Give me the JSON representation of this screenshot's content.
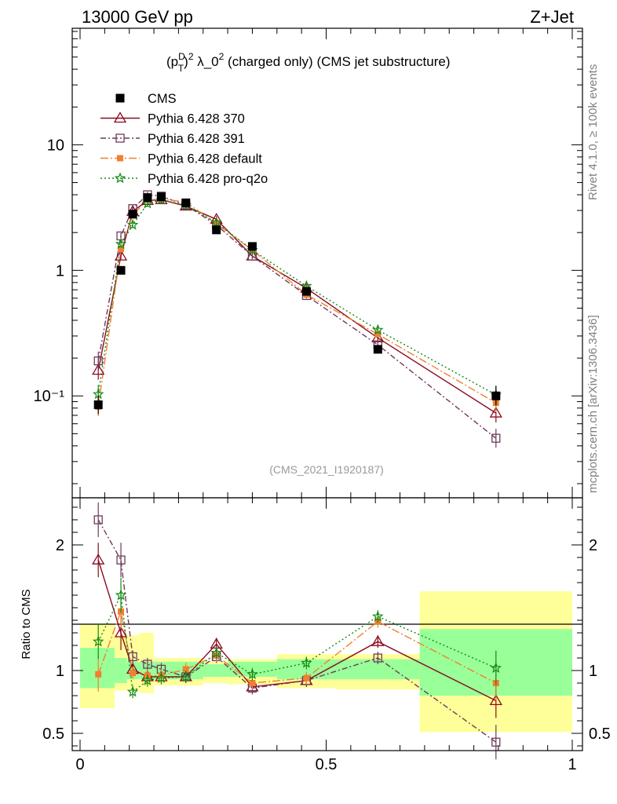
{
  "header": {
    "left": "13000 GeV pp",
    "right": "Z+Jet",
    "side_top": "Rivet 4.1.0, ≥ 100k events",
    "side_bottom": "mcplots.cern.ch [arXiv:1306.3436]"
  },
  "colors": {
    "cms": "#000000",
    "p370": "#8b0a1f",
    "p391": "#6e3b5a",
    "pdefault": "#f08030",
    "pq2o": "#148a14",
    "band_yellow": "#ffff99",
    "band_green": "#99ff99"
  },
  "chart_data": {
    "type": "line",
    "title_main": "(p",
    "title_sup1": "D",
    "title_sub": "T",
    "title_after": ")",
    "title_sup2": "2",
    "title_lambda": " λ_0",
    "title_sup3": "2",
    "title_rest": " (charged only) (CMS jet substructure)",
    "watermark": "(CMS_2021_I1920187)",
    "ylabel_ratio": "Ratio to CMS",
    "xlim": [
      0,
      1
    ],
    "ylim_main": [
      0.02,
      80
    ],
    "ylim_ratio": [
      0.4,
      2.3
    ],
    "x_tick_labels": [
      "0",
      "0.5",
      "1"
    ],
    "x_ticks": [
      0,
      0.5,
      1
    ],
    "y_tick_labels_main": [
      "10⁻¹",
      "1",
      "10"
    ],
    "y_ticks_main": [
      0.1,
      1,
      10
    ],
    "y_tick_labels_ratio": [
      "0.5",
      "1",
      "2"
    ],
    "y_ticks_ratio": [
      0.5,
      1,
      2
    ],
    "bin_edges": [
      0,
      0.07,
      0.095,
      0.12,
      0.15,
      0.18,
      0.25,
      0.3,
      0.4,
      0.52,
      0.69,
      1.0
    ],
    "band_green_lo": [
      0.86,
      0.9,
      0.93,
      0.93,
      0.93,
      0.93,
      0.95,
      0.95,
      0.93,
      0.93,
      0.8
    ],
    "band_green_hi": [
      1.18,
      1.1,
      1.07,
      1.07,
      1.07,
      1.07,
      1.05,
      1.07,
      1.09,
      1.09,
      1.33
    ],
    "band_yellow_lo": [
      0.7,
      0.84,
      0.84,
      0.82,
      0.88,
      0.88,
      0.9,
      0.89,
      0.86,
      0.85,
      0.51
    ],
    "band_yellow_hi": [
      1.37,
      1.28,
      1.28,
      1.3,
      1.1,
      1.1,
      1.07,
      1.09,
      1.13,
      1.13,
      1.63
    ],
    "x": [
      0.037,
      0.083,
      0.107,
      0.137,
      0.165,
      0.215,
      0.277,
      0.35,
      0.46,
      0.605,
      0.845
    ],
    "series": [
      {
        "name": "CMS",
        "key": "cms",
        "marker": "filled-square",
        "line": "none",
        "values": [
          0.085,
          1.0,
          2.8,
          3.8,
          3.85,
          3.45,
          2.1,
          1.55,
          0.68,
          0.235,
          0.1
        ],
        "ratio": [
          1,
          1,
          1,
          1,
          1,
          1,
          1,
          1,
          1,
          1,
          1
        ]
      },
      {
        "name": "Pythia 6.428 370",
        "key": "p370",
        "marker": "open-triangle",
        "line": "solid",
        "values": [
          0.16,
          1.3,
          2.95,
          3.6,
          3.65,
          3.25,
          2.55,
          1.3,
          0.72,
          0.29,
          0.073
        ],
        "ratio": [
          1.88,
          1.3,
          1.01,
          0.95,
          0.95,
          0.95,
          1.21,
          0.87,
          0.92,
          1.23,
          0.76
        ]
      },
      {
        "name": "Pythia 6.428 391",
        "key": "p391",
        "marker": "open-square",
        "line": "dashdot",
        "values": [
          0.19,
          1.88,
          3.1,
          4.0,
          3.9,
          3.3,
          2.3,
          1.3,
          0.63,
          0.255,
          0.046
        ],
        "ratio": [
          2.2,
          1.88,
          1.11,
          1.05,
          1.01,
          0.95,
          1.11,
          0.86,
          0.92,
          1.1,
          0.43
        ]
      },
      {
        "name": "Pythia 6.428 default",
        "key": "pdefault",
        "marker": "filled-square-small",
        "line": "dashdot-long",
        "values": [
          0.082,
          1.48,
          2.75,
          3.65,
          3.7,
          3.5,
          2.35,
          1.45,
          0.64,
          0.31,
          0.088
        ],
        "ratio": [
          0.97,
          1.47,
          0.98,
          0.96,
          0.96,
          1.01,
          1.12,
          0.9,
          0.94,
          1.39,
          0.9
        ]
      },
      {
        "name": "Pythia 6.428 pro-q2o",
        "key": "pq2o",
        "marker": "star",
        "line": "dotted",
        "values": [
          0.103,
          1.62,
          2.3,
          3.4,
          3.65,
          3.3,
          2.4,
          1.45,
          0.75,
          0.335,
          0.102
        ],
        "ratio": [
          1.23,
          1.6,
          0.83,
          0.92,
          0.94,
          0.95,
          1.14,
          0.97,
          1.06,
          1.43,
          1.02
        ]
      }
    ],
    "legend": [
      {
        "key": "cms",
        "label": "CMS"
      },
      {
        "key": "p370",
        "label": "Pythia 6.428 370"
      },
      {
        "key": "p391",
        "label": "Pythia 6.428 391"
      },
      {
        "key": "pdefault",
        "label": "Pythia 6.428 default"
      },
      {
        "key": "pq2o",
        "label": "Pythia 6.428 pro-q2o"
      }
    ]
  }
}
